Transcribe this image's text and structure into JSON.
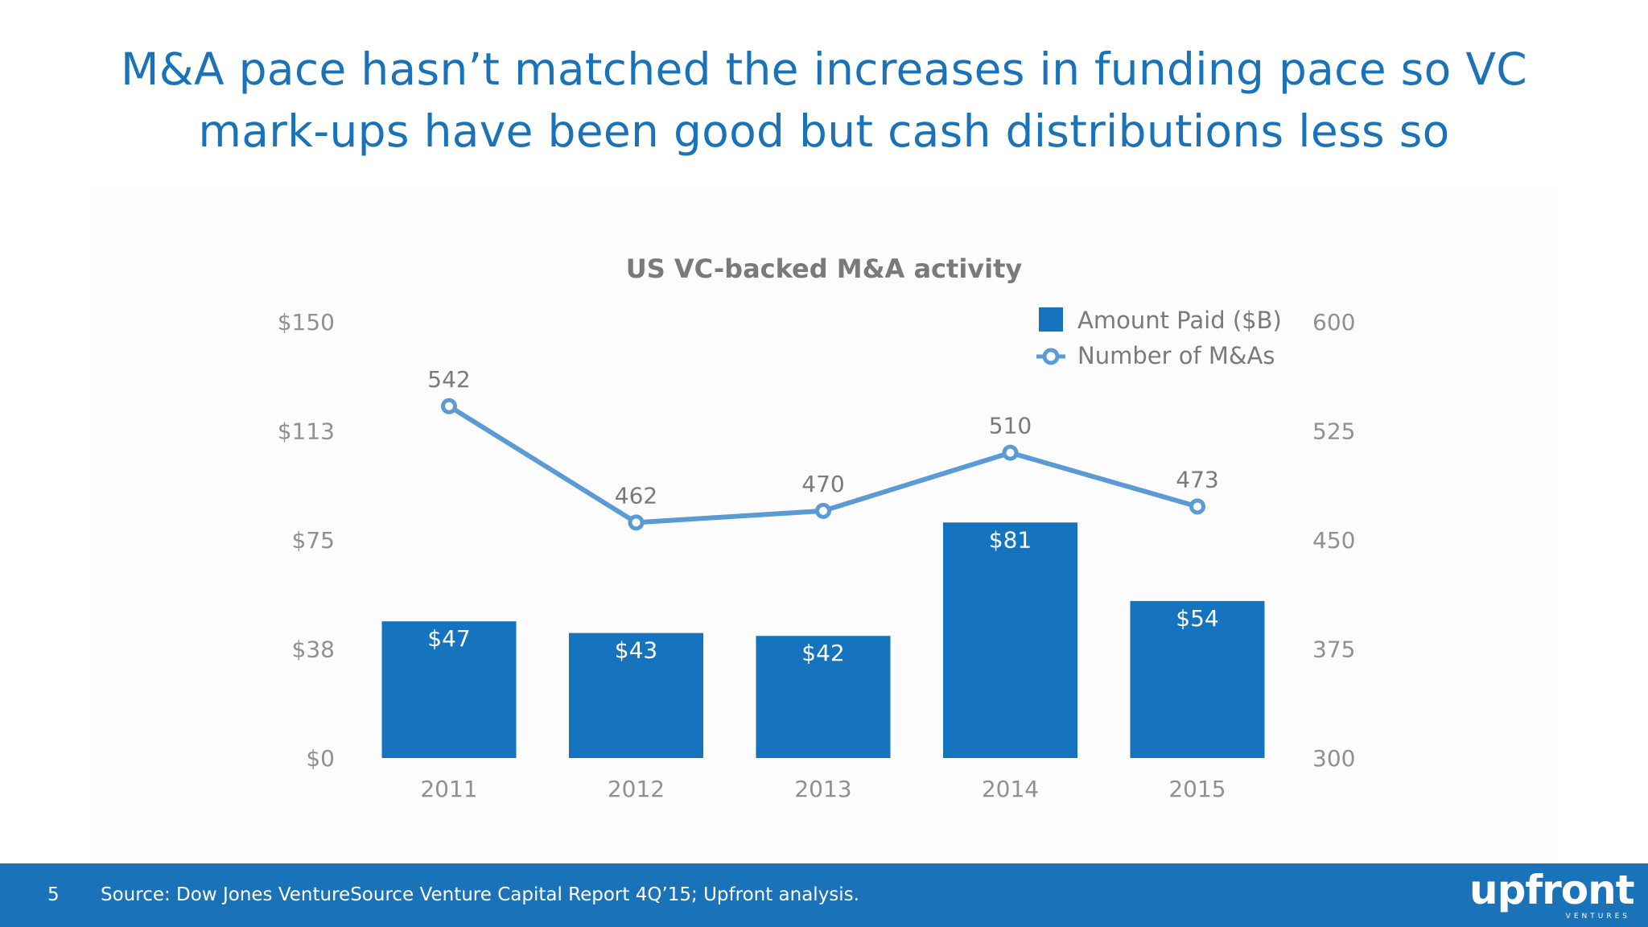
{
  "slide": {
    "title": "M&A pace hasn’t matched the increases in funding pace so VC mark-ups have been good but cash distributions less so"
  },
  "footer": {
    "page_number": "5",
    "source": "Source: Dow Jones VentureSource Venture Capital Report 4Q’15; Upfront analysis.",
    "logo_text": "upfront",
    "logo_subtext": "VENTURES"
  },
  "colors": {
    "accent": "#1a73b8",
    "bar": "#1673bd",
    "line": "#5b9bd5",
    "axis_text": "#909090",
    "label_text": "#7a7a7a",
    "title_text": "#7a7a7a"
  },
  "chart_data": {
    "type": "bar",
    "title": "US VC-backed M&A activity",
    "categories": [
      "2011",
      "2012",
      "2013",
      "2014",
      "2015"
    ],
    "series": [
      {
        "name": "Amount Paid ($B)",
        "type": "bar",
        "axis": "left",
        "values": [
          47,
          43,
          42,
          81,
          54
        ],
        "labels": [
          "$47",
          "$43",
          "$42",
          "$81",
          "$54"
        ]
      },
      {
        "name": "Number of M&As",
        "type": "line",
        "axis": "right",
        "values": [
          542,
          462,
          470,
          510,
          473
        ],
        "labels": [
          "542",
          "462",
          "470",
          "510",
          "473"
        ]
      }
    ],
    "left_axis": {
      "ylim": [
        0,
        150
      ],
      "ticks": [
        0,
        37.5,
        75,
        112.5,
        150
      ],
      "tick_labels": [
        "$0",
        "$38",
        "$75",
        "$113",
        "$150"
      ]
    },
    "right_axis": {
      "ylim": [
        300,
        600
      ],
      "ticks": [
        300,
        375,
        450,
        525,
        600
      ],
      "tick_labels": [
        "300",
        "375",
        "450",
        "525",
        "600"
      ]
    },
    "legend": {
      "position": "top-right",
      "entries": [
        "Amount Paid ($B)",
        "Number of M&As"
      ]
    },
    "grid": false
  }
}
